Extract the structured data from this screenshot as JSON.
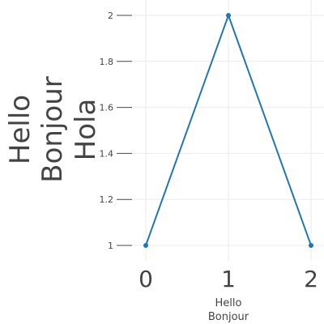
{
  "chart_data": {
    "type": "line",
    "x": [
      0,
      1,
      2
    ],
    "series": [
      {
        "values": [
          1,
          2,
          1
        ],
        "color": "#1f77b4"
      }
    ],
    "xlim": [
      0,
      2
    ],
    "ylim": [
      1,
      2
    ],
    "x_ticks": [
      "0",
      "1",
      "2"
    ],
    "y_ticks": [
      "1",
      "1.2",
      "1.4",
      "1.6",
      "1.8",
      "2"
    ],
    "xlabel_lines": [
      "Hello",
      "Bonjour"
    ],
    "ylabel_lines": [
      "Hello",
      "Bonjour",
      "Hola"
    ],
    "grid": true,
    "legend": "none"
  }
}
